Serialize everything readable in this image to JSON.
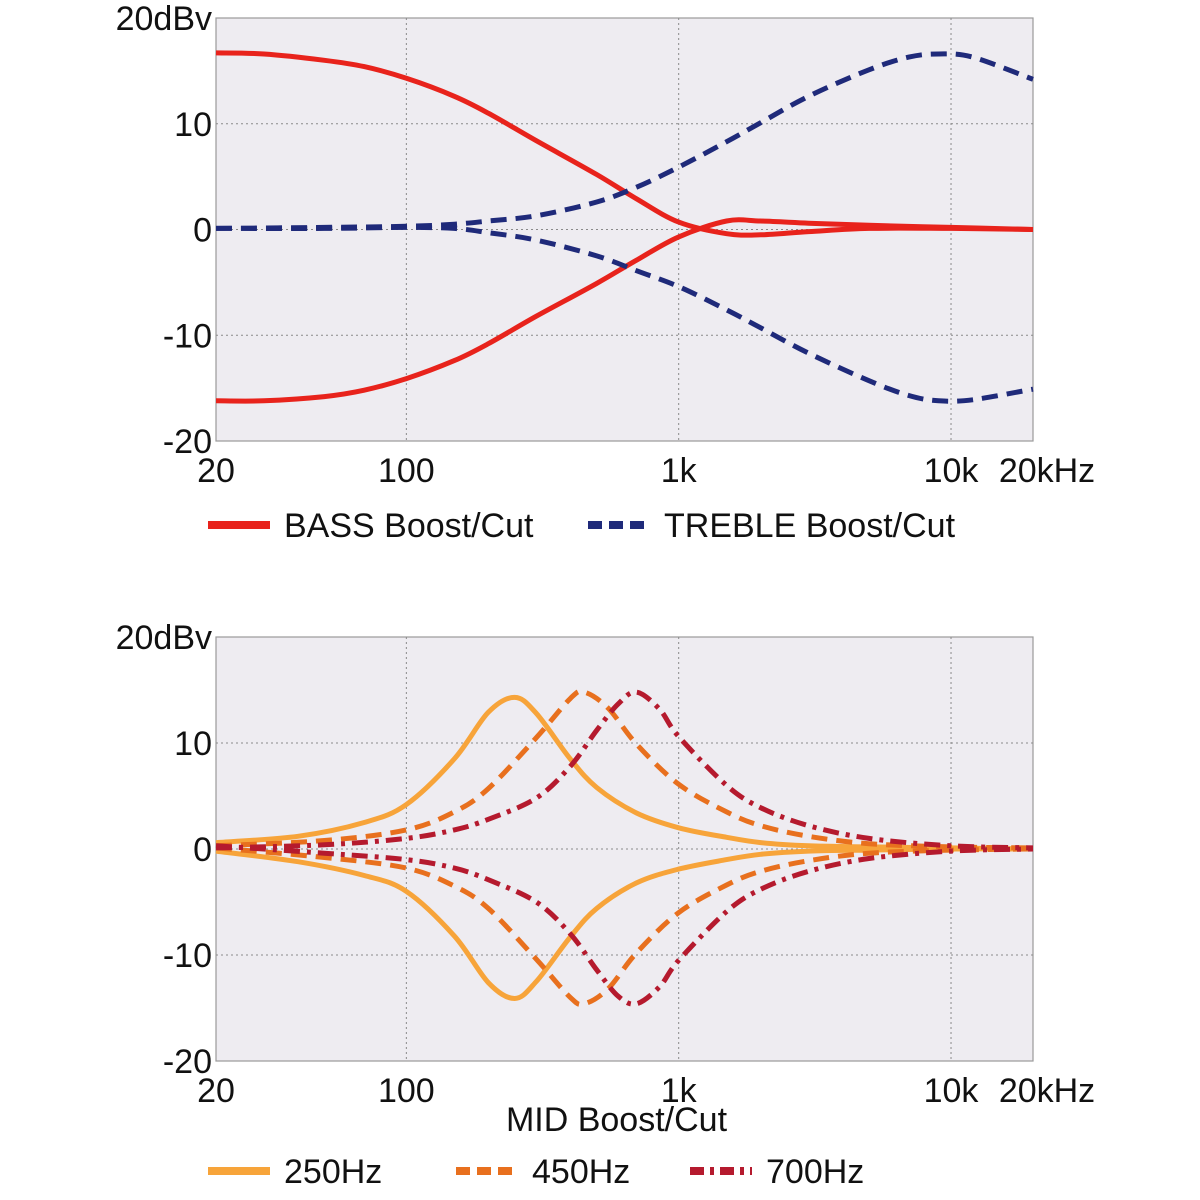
{
  "chart_data": [
    {
      "type": "line",
      "title": "",
      "xlabel": "",
      "ylabel": "",
      "x_scale": "log",
      "xlim": [
        20,
        20000
      ],
      "ylim": [
        -20,
        20
      ],
      "grid": true,
      "legend_position": "bottom",
      "x_ticks": [
        {
          "value": 20,
          "label": "20"
        },
        {
          "value": 100,
          "label": "100"
        },
        {
          "value": 1000,
          "label": "1k"
        },
        {
          "value": 10000,
          "label": "10k"
        },
        {
          "value": 20000,
          "label": "20kHz"
        }
      ],
      "y_ticks": [
        {
          "value": 20,
          "label": "20dBv"
        },
        {
          "value": 10,
          "label": "10"
        },
        {
          "value": 0,
          "label": "0"
        },
        {
          "value": -10,
          "label": "-10"
        },
        {
          "value": -20,
          "label": "-20"
        }
      ],
      "legend": [
        {
          "label": "BASS Boost/Cut",
          "color": "#e8231c",
          "style": "solid"
        },
        {
          "label": "TREBLE Boost/Cut",
          "color": "#1f2a7a",
          "style": "dashed"
        }
      ],
      "series": [
        {
          "name": "BASS Boost/Cut",
          "color": "#e8231c",
          "style": "solid",
          "x": [
            20,
            30,
            50,
            70,
            100,
            150,
            200,
            300,
            500,
            700,
            1000,
            1500,
            2000,
            3000,
            5000,
            10000,
            20000
          ],
          "y": [
            16.7,
            16.6,
            16.0,
            15.4,
            14.3,
            12.6,
            11.0,
            8.4,
            5.2,
            2.9,
            0.7,
            -0.4,
            -0.5,
            -0.2,
            0.1,
            0.1,
            0.0
          ]
        },
        {
          "name": "BASS Boost/Cut",
          "color": "#e8231c",
          "style": "solid",
          "x": [
            20,
            30,
            50,
            70,
            100,
            150,
            200,
            300,
            500,
            700,
            1000,
            1500,
            2000,
            3000,
            5000,
            10000,
            20000
          ],
          "y": [
            -16.2,
            -16.2,
            -15.8,
            -15.2,
            -14.1,
            -12.4,
            -10.8,
            -8.2,
            -5.1,
            -2.9,
            -0.7,
            0.8,
            0.8,
            0.6,
            0.4,
            0.2,
            0.0
          ]
        },
        {
          "name": "TREBLE Boost/Cut",
          "color": "#1f2a7a",
          "style": "dashed",
          "x": [
            20,
            50,
            100,
            150,
            200,
            300,
            500,
            700,
            1000,
            1500,
            2000,
            3000,
            5000,
            7000,
            9000,
            12000,
            20000
          ],
          "y": [
            0.1,
            0.2,
            0.3,
            0.5,
            0.8,
            1.3,
            2.6,
            4.0,
            5.9,
            8.3,
            10.1,
            12.6,
            15.1,
            16.3,
            16.6,
            16.3,
            14.2
          ]
        },
        {
          "name": "TREBLE Boost/Cut",
          "color": "#1f2a7a",
          "style": "dashed",
          "x": [
            20,
            50,
            100,
            150,
            200,
            300,
            500,
            700,
            1000,
            1500,
            2000,
            3000,
            5000,
            7000,
            9000,
            12000,
            20000
          ],
          "y": [
            0.1,
            0.1,
            0.2,
            0.1,
            -0.3,
            -1.0,
            -2.5,
            -3.9,
            -5.4,
            -7.6,
            -9.3,
            -11.7,
            -14.3,
            -15.7,
            -16.2,
            -16.1,
            -15.1
          ]
        }
      ]
    },
    {
      "type": "line",
      "title": "",
      "xlabel": "MID Boost/Cut",
      "ylabel": "",
      "x_scale": "log",
      "xlim": [
        20,
        20000
      ],
      "ylim": [
        -20,
        20
      ],
      "grid": true,
      "legend_position": "bottom",
      "x_ticks": [
        {
          "value": 20,
          "label": "20"
        },
        {
          "value": 100,
          "label": "100"
        },
        {
          "value": 1000,
          "label": "1k"
        },
        {
          "value": 10000,
          "label": "10k"
        },
        {
          "value": 20000,
          "label": "20kHz"
        }
      ],
      "y_ticks": [
        {
          "value": 20,
          "label": "20dBv"
        },
        {
          "value": 10,
          "label": "10"
        },
        {
          "value": 0,
          "label": "0"
        },
        {
          "value": -10,
          "label": "-10"
        },
        {
          "value": -20,
          "label": "-20"
        }
      ],
      "legend": [
        {
          "label": "250Hz",
          "color": "#f7a43a",
          "style": "solid"
        },
        {
          "label": "450Hz",
          "color": "#e8701e",
          "style": "dashed"
        },
        {
          "label": "700Hz",
          "color": "#b51a2e",
          "style": "dashdot"
        }
      ],
      "series": [
        {
          "name": "250Hz",
          "color": "#f7a43a",
          "style": "solid",
          "x": [
            20,
            40,
            70,
            100,
            150,
            200,
            250,
            300,
            400,
            500,
            700,
            1000,
            1500,
            2000,
            3000,
            5000,
            10000,
            20000
          ],
          "y": [
            0.6,
            1.2,
            2.5,
            4.2,
            8.5,
            12.9,
            14.3,
            12.8,
            8.5,
            5.8,
            3.4,
            2.0,
            1.1,
            0.6,
            0.3,
            0.2,
            0.1,
            0.0
          ]
        },
        {
          "name": "250Hz",
          "color": "#f7a43a",
          "style": "solid",
          "x": [
            20,
            40,
            70,
            100,
            150,
            200,
            250,
            300,
            400,
            500,
            700,
            1000,
            1500,
            2000,
            3000,
            5000,
            10000,
            20000
          ],
          "y": [
            -0.2,
            -1.2,
            -2.5,
            -4.0,
            -8.2,
            -12.6,
            -14.1,
            -12.5,
            -8.3,
            -5.6,
            -3.2,
            -1.9,
            -1.0,
            -0.5,
            -0.2,
            -0.1,
            0.0,
            0.0
          ]
        },
        {
          "name": "450Hz",
          "color": "#e8701e",
          "style": "dashed",
          "x": [
            20,
            50,
            100,
            150,
            200,
            300,
            400,
            450,
            550,
            700,
            1000,
            1500,
            2000,
            3000,
            5000,
            10000,
            20000
          ],
          "y": [
            0.3,
            0.8,
            1.8,
            3.5,
            5.7,
            10.5,
            14.2,
            14.8,
            13.3,
            9.9,
            6.1,
            3.5,
            2.2,
            1.2,
            0.5,
            0.2,
            0.1
          ]
        },
        {
          "name": "450Hz",
          "color": "#e8701e",
          "style": "dashed",
          "x": [
            20,
            50,
            100,
            150,
            200,
            300,
            400,
            450,
            550,
            700,
            1000,
            1500,
            2000,
            3000,
            5000,
            10000,
            20000
          ],
          "y": [
            0.1,
            -0.8,
            -1.8,
            -3.5,
            -5.6,
            -10.4,
            -14.0,
            -14.6,
            -13.2,
            -9.8,
            -6.0,
            -3.4,
            -2.1,
            -1.1,
            -0.4,
            -0.1,
            0.0
          ]
        },
        {
          "name": "700Hz",
          "color": "#b51a2e",
          "style": "dashdot",
          "x": [
            20,
            50,
            100,
            150,
            200,
            300,
            400,
            500,
            600,
            700,
            850,
            1000,
            1500,
            2000,
            3000,
            5000,
            10000,
            20000
          ],
          "y": [
            0.1,
            0.4,
            1.0,
            1.8,
            2.8,
            4.8,
            7.8,
            11.2,
            13.7,
            14.8,
            13.2,
            10.6,
            6.0,
            3.9,
            2.2,
            1.0,
            0.3,
            0.1
          ]
        },
        {
          "name": "700Hz",
          "color": "#b51a2e",
          "style": "dashdot",
          "x": [
            20,
            50,
            100,
            150,
            200,
            300,
            400,
            500,
            600,
            700,
            850,
            1000,
            1500,
            2000,
            3000,
            5000,
            10000,
            20000
          ],
          "y": [
            0.3,
            -0.4,
            -1.0,
            -1.8,
            -2.9,
            -5.0,
            -8.0,
            -11.4,
            -13.9,
            -14.6,
            -13.0,
            -10.5,
            -5.9,
            -3.8,
            -2.1,
            -0.9,
            -0.2,
            0.0
          ]
        }
      ]
    }
  ]
}
